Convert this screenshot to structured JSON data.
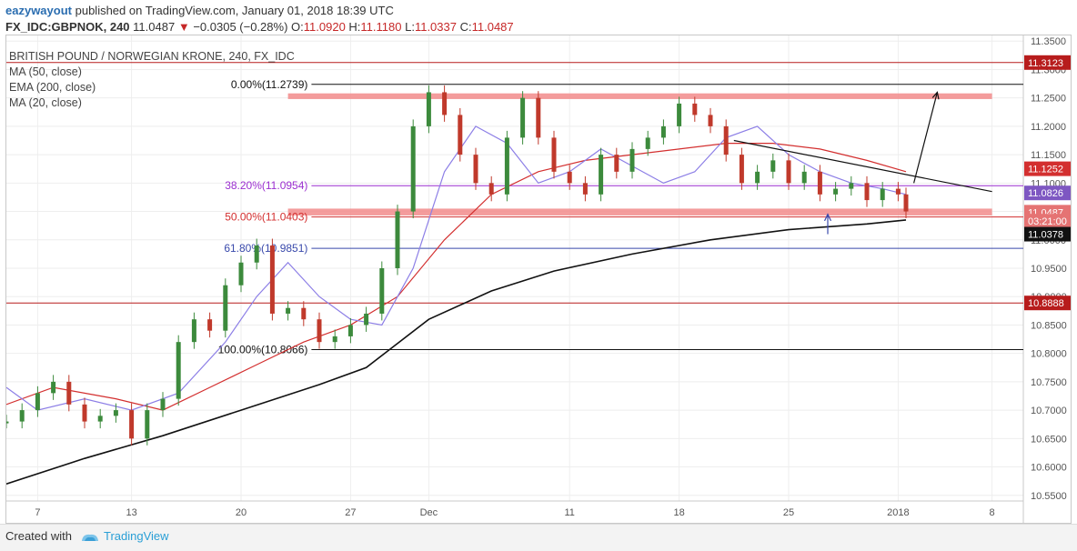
{
  "header": {
    "author": "eazywayout",
    "published_text": "published on TradingView.com, January 01, 2018 18:39 UTC",
    "symbol": "FX_IDC:GBPNOK, 240",
    "last": "11.0487",
    "change": "−0.0305 (−0.28%)",
    "o_label": "O:",
    "o_value": "11.0920",
    "h_label": "H:",
    "h_value": "11.1180",
    "l_label": "L:",
    "l_value": "11.0337",
    "c_label": "C:",
    "c_value": "11.0487"
  },
  "legend": {
    "title": "BRITISH POUND / NORWEGIAN KRONE, 240, FX_IDC",
    "ma50": "MA (50, close)",
    "ema200": "EMA (200, close)",
    "ma20": "MA (20, close)"
  },
  "footer": {
    "created_with": "Created with",
    "brand": "TradingView"
  },
  "colors": {
    "up": "#3c8a3c",
    "down": "#c0392b",
    "ema200": "#111111",
    "ma50": "#d32f2f",
    "ma20": "#8c7ee6",
    "zone": "#f28b8b",
    "fib": "#9b2fd0"
  },
  "chart_data": {
    "type": "line",
    "title": "BRITISH POUND / NORWEGIAN KRONE, 240, FX_IDC",
    "ylim": [
      10.54,
      11.36
    ],
    "y_ticks": [
      "11.3500",
      "11.3000",
      "11.2500",
      "11.2000",
      "11.1500",
      "11.1000",
      "11.0500",
      "11.0000",
      "10.9500",
      "10.9000",
      "10.8500",
      "10.8000",
      "10.7500",
      "10.7000",
      "10.6500",
      "10.6000",
      "10.5500"
    ],
    "x_ticks": [
      {
        "label": "7",
        "x": 7
      },
      {
        "label": "13",
        "x": 13
      },
      {
        "label": "20",
        "x": 20
      },
      {
        "label": "27",
        "x": 27
      },
      {
        "label": "Dec",
        "x": 32
      },
      {
        "label": "11",
        "x": 41
      },
      {
        "label": "18",
        "x": 48
      },
      {
        "label": "25",
        "x": 55
      },
      {
        "label": "2018",
        "x": 62
      },
      {
        "label": "8",
        "x": 68
      }
    ],
    "xlim": [
      5,
      70
    ],
    "price_labels": [
      {
        "text": "11.3123",
        "y": 11.3123,
        "color": "#b71c1c"
      },
      {
        "text": "11.1252",
        "y": 11.1252,
        "color": "#d32f2f"
      },
      {
        "text": "11.0826",
        "y": 11.0826,
        "color": "#7e57c2"
      },
      {
        "text": "11.0487",
        "y": 11.0487,
        "color": "#e57373"
      },
      {
        "text": "03:21:00",
        "y": 11.033,
        "color": "#e57373"
      },
      {
        "text": "11.0378",
        "y": 11.01,
        "color": "#111111"
      },
      {
        "text": "10.8888",
        "y": 10.8888,
        "color": "#b71c1c"
      }
    ],
    "fib_levels": [
      {
        "label": "0.00%(11.2739)",
        "value": 11.2739,
        "color": "#111111"
      },
      {
        "label": "38.20%(11.0954)",
        "value": 11.0954,
        "color": "#9b2fd0"
      },
      {
        "label": "50.00%(11.0403)",
        "value": 11.0403,
        "color": "#d32f2f"
      },
      {
        "label": "61.80%(10.9851)",
        "value": 10.9851,
        "color": "#3949ab"
      },
      {
        "label": "100.00%(10.8066)",
        "value": 10.8066,
        "color": "#111111"
      }
    ],
    "horizontal_lines": [
      {
        "value": 11.3123,
        "color": "#b71c1c"
      },
      {
        "value": 10.8888,
        "color": "#b71c1c"
      }
    ],
    "zones": [
      {
        "from": 11.248,
        "to": 11.258
      },
      {
        "from": 11.043,
        "to": 11.055
      }
    ],
    "series": [
      {
        "name": "EMA (200, close)",
        "color": "#111111",
        "x": [
          5,
          10,
          15,
          20,
          25,
          28,
          32,
          36,
          40,
          45,
          50,
          55,
          60,
          62.5
        ],
        "y": [
          10.57,
          10.615,
          10.655,
          10.7,
          10.745,
          10.775,
          10.86,
          10.91,
          10.945,
          10.975,
          11.0,
          11.018,
          11.028,
          11.035
        ]
      },
      {
        "name": "MA (50, close)",
        "color": "#d32f2f",
        "x": [
          5,
          8,
          12,
          15,
          18,
          21,
          24,
          27,
          30,
          33,
          36,
          39,
          42,
          45,
          48,
          51,
          54,
          57,
          60,
          62.5
        ],
        "y": [
          10.71,
          10.74,
          10.72,
          10.7,
          10.74,
          10.78,
          10.82,
          10.85,
          10.9,
          11.0,
          11.08,
          11.12,
          11.14,
          11.15,
          11.16,
          11.17,
          11.17,
          11.16,
          11.14,
          11.12
        ]
      },
      {
        "name": "MA (20, close)",
        "color": "#8c7ee6",
        "x": [
          5,
          7,
          10,
          13,
          16,
          19,
          21,
          23,
          25,
          27,
          29,
          31,
          33,
          35,
          37,
          39,
          41,
          43,
          45,
          47,
          49,
          51,
          53,
          55,
          57,
          59,
          61,
          62.5
        ],
        "y": [
          10.74,
          10.7,
          10.72,
          10.7,
          10.73,
          10.82,
          10.9,
          10.96,
          10.9,
          10.86,
          10.85,
          10.95,
          11.12,
          11.2,
          11.17,
          11.1,
          11.12,
          11.16,
          11.13,
          11.1,
          11.12,
          11.18,
          11.2,
          11.15,
          11.12,
          11.1,
          11.09,
          11.08
        ]
      },
      {
        "name": "price",
        "color": "#3c8a3c",
        "x": [
          5,
          6,
          7,
          8,
          9,
          10,
          11,
          12,
          13,
          14,
          15,
          16,
          17,
          18,
          19,
          20,
          21,
          22,
          23,
          24,
          25,
          26,
          27,
          28,
          29,
          30,
          31,
          32,
          33,
          34,
          35,
          36,
          37,
          38,
          39,
          40,
          41,
          42,
          43,
          44,
          45,
          46,
          47,
          48,
          49,
          50,
          51,
          52,
          53,
          54,
          55,
          56,
          57,
          58,
          59,
          60,
          61,
          62,
          62.5
        ],
        "y": [
          10.68,
          10.7,
          10.73,
          10.75,
          10.71,
          10.68,
          10.69,
          10.7,
          10.65,
          10.7,
          10.72,
          10.82,
          10.86,
          10.84,
          10.92,
          10.96,
          10.99,
          10.87,
          10.88,
          10.86,
          10.82,
          10.83,
          10.85,
          10.87,
          10.95,
          11.05,
          11.2,
          11.26,
          11.22,
          11.15,
          11.1,
          11.08,
          11.18,
          11.25,
          11.18,
          11.12,
          11.1,
          11.08,
          11.15,
          11.12,
          11.16,
          11.18,
          11.2,
          11.24,
          11.22,
          11.2,
          11.15,
          11.1,
          11.12,
          11.14,
          11.1,
          11.12,
          11.08,
          11.09,
          11.1,
          11.07,
          11.09,
          11.08,
          11.05
        ]
      }
    ],
    "annotations": [
      {
        "type": "trendline",
        "x": [
          51.5,
          68
        ],
        "y": [
          11.175,
          11.085
        ],
        "color": "#111111"
      },
      {
        "type": "arrow",
        "x": [
          63,
          64.5
        ],
        "y": [
          11.1,
          11.26
        ],
        "color": "#111111"
      },
      {
        "type": "arrow",
        "x": [
          57.5,
          57.5
        ],
        "y": [
          11.01,
          11.045
        ],
        "color": "#3949ab"
      }
    ]
  }
}
